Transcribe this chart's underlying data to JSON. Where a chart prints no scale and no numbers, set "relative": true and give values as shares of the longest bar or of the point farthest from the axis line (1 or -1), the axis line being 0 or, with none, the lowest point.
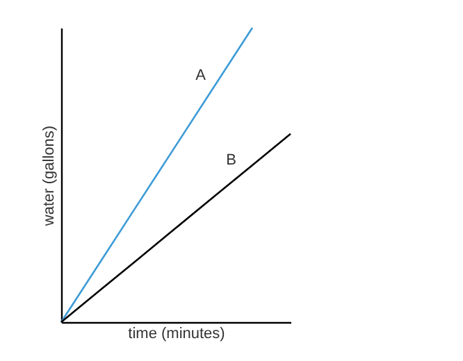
{
  "chart_data": {
    "type": "line",
    "relative": true,
    "xlabel": "time (minutes)",
    "ylabel": "water (gallons)",
    "tick_labels": false,
    "categories": [
      null,
      null,
      null,
      null,
      null,
      null,
      null
    ],
    "series": [
      {
        "name": "A",
        "color": "#3d9bd6",
        "values": [
          0,
          0.2,
          0.4,
          0.6,
          0.8,
          1,
          null
        ]
      },
      {
        "name": "B",
        "color": "#000000",
        "values": [
          0,
          0.107,
          0.213,
          0.32,
          0.427,
          0.533,
          0.64
        ]
      }
    ]
  }
}
